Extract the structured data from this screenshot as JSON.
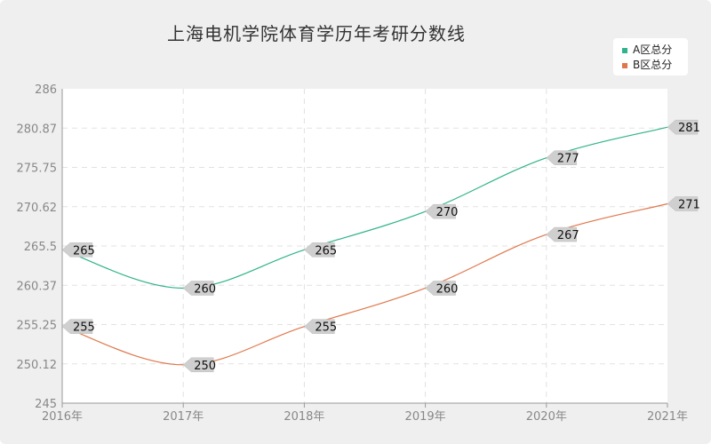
{
  "chart_data": {
    "type": "line",
    "title": "上海电机学院体育学历年考研分数线",
    "categories": [
      "2016年",
      "2017年",
      "2018年",
      "2019年",
      "2020年",
      "2021年"
    ],
    "ylim": [
      245,
      286
    ],
    "yticks": [
      "286",
      "280.87",
      "275.75",
      "270.62",
      "265.5",
      "260.37",
      "255.25",
      "250.12",
      "245"
    ],
    "grid": true,
    "legend_position": "top-right",
    "series": [
      {
        "name": "A区总分",
        "color": "#2fb38a",
        "values": [
          265,
          260,
          265,
          270,
          277,
          281
        ]
      },
      {
        "name": "B区总分",
        "color": "#e0774a",
        "values": [
          255,
          250,
          255,
          260,
          267,
          271
        ]
      }
    ]
  }
}
